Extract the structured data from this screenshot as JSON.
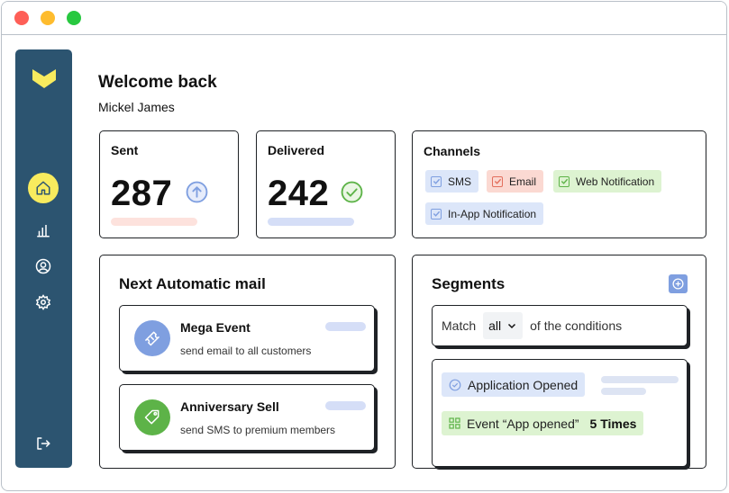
{
  "welcome": {
    "title": "Welcome back",
    "name": "Mickel James"
  },
  "stats": {
    "sent": {
      "label": "Sent",
      "value": "287",
      "bar_color": "#fde2dd"
    },
    "delivered": {
      "label": "Delivered",
      "value": "242",
      "bar_color": "#d5def7"
    }
  },
  "channels": {
    "title": "Channels",
    "items": [
      {
        "label": "SMS",
        "bg": "#dce6f9",
        "check_color": "#7f9fe0"
      },
      {
        "label": "Email",
        "bg": "#fbd9d2",
        "check_color": "#e36f5d"
      },
      {
        "label": "Web Notification",
        "bg": "#ddf3d1",
        "check_color": "#5db348"
      },
      {
        "label": "In-App Notification",
        "bg": "#dce6f9",
        "check_color": "#7f9fe0"
      }
    ]
  },
  "next_mail": {
    "title": "Next Automatic mail",
    "items": [
      {
        "title": "Mega Event",
        "subtitle": "send email to all customers",
        "icon": "ticket-icon",
        "icon_bg": "#7f9fe0"
      },
      {
        "title": "Anniversary Sell",
        "subtitle": "send SMS to premium members",
        "icon": "tag-icon",
        "icon_bg": "#5db348"
      }
    ]
  },
  "segments": {
    "title": "Segments",
    "match_prefix": "Match",
    "match_value": "all",
    "match_suffix": "of the conditions",
    "condition_1": "Application Opened",
    "condition_2": "Event “App opened”",
    "condition_2_count": "5 Times"
  },
  "colors": {
    "sidebar": "#2c5470",
    "accent_yellow": "#f8eb5e",
    "blue": "#7f9fe0",
    "green": "#5db348"
  }
}
